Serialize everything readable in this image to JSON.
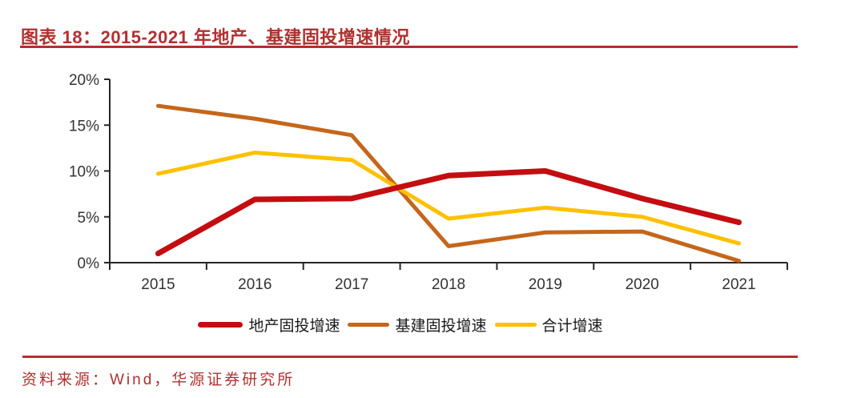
{
  "header": {
    "title": "图表 18：2015-2021 年地产、基建固投增速情况"
  },
  "footer": {
    "source": "资料来源：Wind，华源证券研究所"
  },
  "theme": {
    "accent_red": "#b03131",
    "axis_color": "#262626",
    "tick_label_color": "#333333"
  },
  "chart_data": {
    "type": "line",
    "title": "图表 18：2015-2021 年地产、基建固投增速情况",
    "categories": [
      "2015",
      "2016",
      "2017",
      "2018",
      "2019",
      "2020",
      "2021"
    ],
    "series": [
      {
        "name": "地产固投增速",
        "color": "#c40d11",
        "values": [
          1.0,
          6.9,
          7.0,
          9.5,
          10.0,
          7.0,
          4.4
        ]
      },
      {
        "name": "基建固投增速",
        "color": "#c4661b",
        "values": [
          17.1,
          15.7,
          13.9,
          1.8,
          3.3,
          3.4,
          0.2
        ]
      },
      {
        "name": "合计增速",
        "color": "#ffc000",
        "values": [
          9.7,
          12.0,
          11.2,
          4.8,
          6.0,
          5.0,
          2.1
        ]
      }
    ],
    "ylim": [
      0,
      20
    ],
    "y_ticks": [
      "0%",
      "5%",
      "10%",
      "15%",
      "20%"
    ],
    "y_tick_step": 5,
    "unit": "%",
    "grid": false,
    "legend_position": "bottom"
  }
}
